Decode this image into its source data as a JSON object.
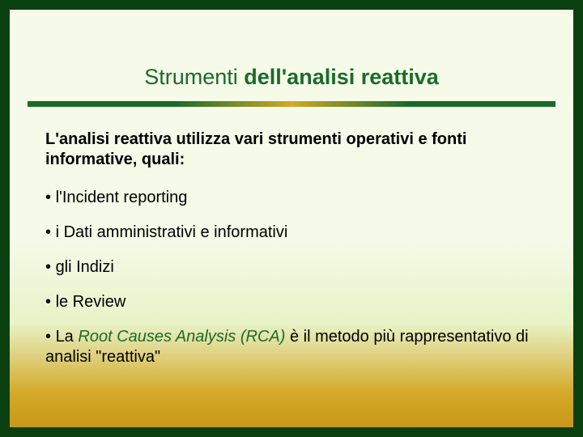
{
  "colors": {
    "frame_border": "#0a4010",
    "title_color": "#1a6b2a",
    "accent_green": "#1a6b2a",
    "accent_gold": "#d4a828",
    "bg_top": "#f5fae9",
    "bg_mid": "#e8f3c8",
    "bg_bottom": "#c89818",
    "text": "#000000"
  },
  "typography": {
    "title_fontsize": 27,
    "body_fontsize": 20,
    "font_family": "Verdana"
  },
  "title": {
    "part1": "Strumenti ",
    "part2_bold": "dell'analisi reattiva"
  },
  "intro": "L'analisi reattiva utilizza vari strumenti operativi e fonti informative, quali:",
  "bullets": [
    {
      "text": "l'Incident reporting"
    },
    {
      "text": "i Dati amministrativi e informativi"
    },
    {
      "text": "gli Indizi"
    },
    {
      "text": "le Review"
    }
  ],
  "last_bullet": {
    "prefix": "La ",
    "rca_italic": "Root Causes Analysis ",
    "rca_abbrev": "(RCA) ",
    "suffix": "è il metodo più rappresentativo di analisi \"reattiva\""
  }
}
